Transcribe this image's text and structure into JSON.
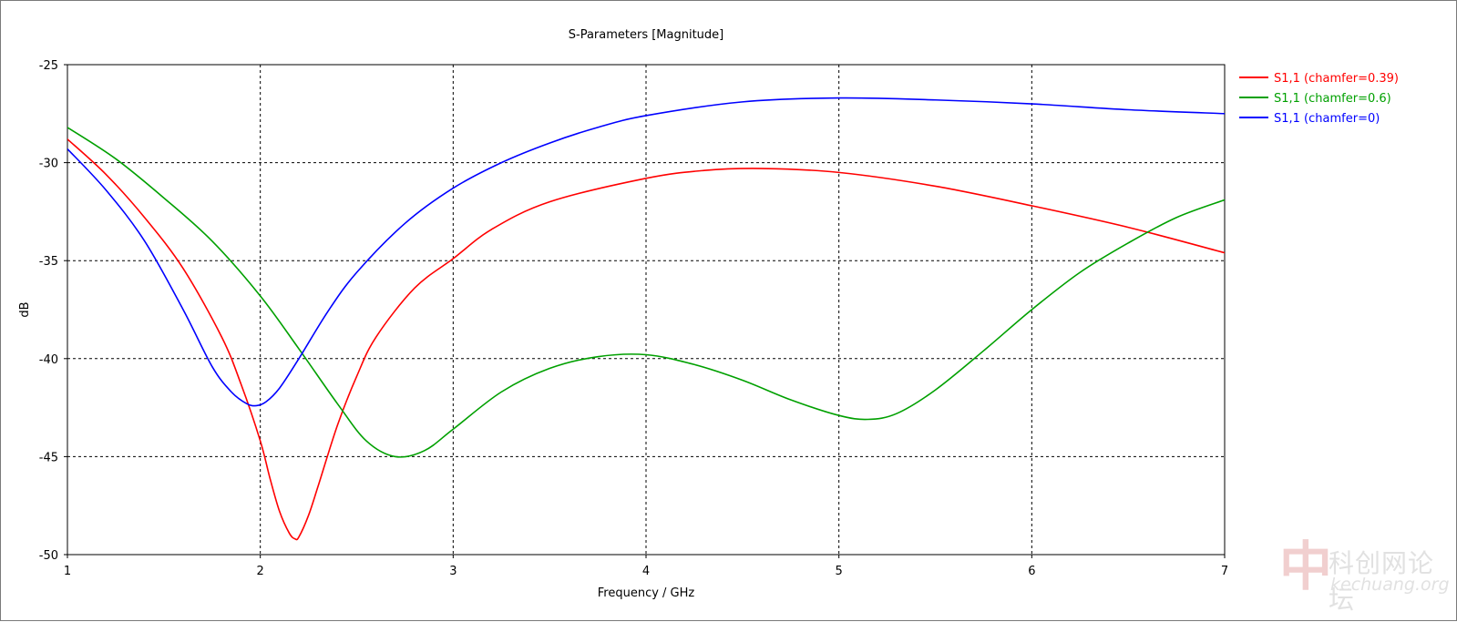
{
  "chart_data": {
    "type": "line",
    "title": "S-Parameters [Magnitude]",
    "xlabel": "Frequency / GHz",
    "ylabel": "dB",
    "xlim": [
      1,
      7
    ],
    "ylim": [
      -50,
      -25
    ],
    "xticks": [
      1,
      2,
      3,
      4,
      5,
      6,
      7
    ],
    "yticks": [
      -25,
      -30,
      -35,
      -40,
      -45,
      -50
    ],
    "grid": true,
    "legend_position": "right",
    "series": [
      {
        "name": "S1,1 (chamfer=0.39)",
        "color": "#ff0000",
        "x": [
          1.0,
          1.2,
          1.4,
          1.6,
          1.8,
          1.9,
          2.0,
          2.05,
          2.1,
          2.15,
          2.18,
          2.2,
          2.25,
          2.3,
          2.4,
          2.5,
          2.6,
          2.8,
          3.0,
          3.2,
          3.5,
          4.0,
          4.3,
          4.6,
          5.0,
          5.5,
          6.0,
          6.5,
          7.0
        ],
        "y": [
          -28.8,
          -30.6,
          -32.8,
          -35.4,
          -38.9,
          -41.3,
          -44.2,
          -46.1,
          -47.8,
          -48.9,
          -49.2,
          -49.1,
          -48.0,
          -46.5,
          -43.4,
          -40.9,
          -38.9,
          -36.4,
          -34.9,
          -33.4,
          -32.0,
          -30.8,
          -30.4,
          -30.3,
          -30.5,
          -31.2,
          -32.2,
          -33.3,
          -34.6
        ]
      },
      {
        "name": "S1,1 (chamfer=0.6)",
        "color": "#00a000",
        "x": [
          1.0,
          1.25,
          1.5,
          1.75,
          2.0,
          2.2,
          2.4,
          2.55,
          2.7,
          2.85,
          3.0,
          3.25,
          3.5,
          3.75,
          4.0,
          4.25,
          4.5,
          4.75,
          5.0,
          5.15,
          5.3,
          5.5,
          5.75,
          6.0,
          6.25,
          6.5,
          6.75,
          7.0
        ],
        "y": [
          -28.2,
          -29.8,
          -31.8,
          -34.0,
          -36.8,
          -39.5,
          -42.3,
          -44.2,
          -45.0,
          -44.7,
          -43.6,
          -41.7,
          -40.5,
          -39.9,
          -39.8,
          -40.3,
          -41.1,
          -42.1,
          -42.9,
          -43.1,
          -42.8,
          -41.6,
          -39.6,
          -37.5,
          -35.6,
          -34.1,
          -32.8,
          -31.9
        ]
      },
      {
        "name": "S1,1 (chamfer=0)",
        "color": "#0000ff",
        "x": [
          1.0,
          1.2,
          1.4,
          1.6,
          1.75,
          1.85,
          1.93,
          1.98,
          2.03,
          2.1,
          2.2,
          2.35,
          2.5,
          2.75,
          3.0,
          3.25,
          3.5,
          3.75,
          4.0,
          4.5,
          5.0,
          5.5,
          6.0,
          6.5,
          7.0
        ],
        "y": [
          -29.3,
          -31.4,
          -34.0,
          -37.5,
          -40.4,
          -41.7,
          -42.3,
          -42.4,
          -42.2,
          -41.5,
          -40.0,
          -37.6,
          -35.6,
          -33.1,
          -31.3,
          -30.0,
          -29.0,
          -28.2,
          -27.6,
          -26.9,
          -26.7,
          -26.8,
          -27.0,
          -27.3,
          -27.5
        ]
      }
    ]
  },
  "watermark": {
    "glyph": "中",
    "text": "科创网论坛",
    "url": "kechuang.org"
  }
}
